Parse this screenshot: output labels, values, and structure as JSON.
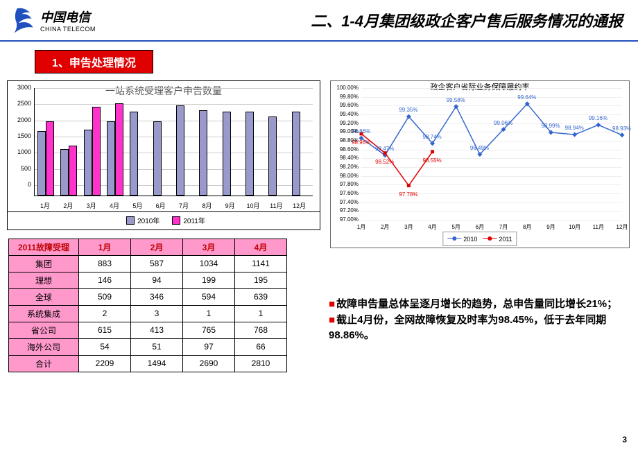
{
  "header": {
    "logo_cn": "中国电信",
    "logo_en": "CHINA TELECOM",
    "title": "二、1-4月集团级政企客户售后服务情况的通报"
  },
  "section_tab": "1、申告处理情况",
  "bar_chart": {
    "title": "一站系统受理客户申告数量",
    "type": "bar",
    "categories": [
      "1月",
      "2月",
      "3月",
      "4月",
      "5月",
      "6月",
      "7月",
      "8月",
      "9月",
      "10月",
      "11月",
      "12月"
    ],
    "series": [
      {
        "name": "2010年",
        "color": "#9999cc",
        "values": [
          1950,
          1400,
          2000,
          2250,
          2550,
          2250,
          2750,
          2600,
          2550,
          2550,
          2400,
          2550
        ]
      },
      {
        "name": "2011年",
        "color": "#ff33cc",
        "values": [
          2250,
          1500,
          2700,
          2800,
          null,
          null,
          null,
          null,
          null,
          null,
          null,
          null
        ]
      }
    ],
    "ylim": [
      0,
      3000
    ],
    "ytick_step": 500,
    "background_color": "#ffffff",
    "grid_color": "#e0e0e0"
  },
  "line_chart": {
    "title": "政企客户省际业务保障履约率",
    "type": "line",
    "categories": [
      "1月",
      "2月",
      "3月",
      "4月",
      "5月",
      "6月",
      "7月",
      "8月",
      "9月",
      "10月",
      "11月",
      "12月"
    ],
    "series": [
      {
        "name": "2010",
        "color": "#3366cc",
        "values": [
          98.86,
          98.47,
          99.35,
          98.74,
          99.58,
          98.49,
          99.06,
          99.64,
          98.99,
          98.94,
          99.16,
          98.93
        ],
        "labels": [
          "98.86%",
          "98.47%",
          "99.35%",
          "98.74%",
          "99.58%",
          "98.49%",
          "99.06%",
          "99.64%",
          "98.99%",
          "98.94%",
          "99.16%",
          "98.93%"
        ]
      },
      {
        "name": "2011",
        "color": "#e00000",
        "values": [
          98.96,
          98.52,
          97.78,
          98.55,
          null,
          null,
          null,
          null,
          null,
          null,
          null,
          null
        ],
        "labels": [
          "98.96%",
          "98.52%",
          "97.78%",
          "98.55%",
          null,
          null,
          null,
          null,
          null,
          null,
          null,
          null
        ]
      }
    ],
    "ylim": [
      97.0,
      100.0
    ],
    "ytick_step": 0.2,
    "yticks": [
      "100.00%",
      "99.80%",
      "99.60%",
      "99.40%",
      "99.20%",
      "99.00%",
      "98.80%",
      "98.60%",
      "98.40%",
      "98.20%",
      "98.00%",
      "97.80%",
      "97.60%",
      "97.40%",
      "97.20%",
      "97.00%"
    ]
  },
  "table": {
    "header_row": [
      "2011故障受理",
      "1月",
      "2月",
      "3月",
      "4月"
    ],
    "rows": [
      [
        "集团",
        "883",
        "587",
        "1034",
        "1141"
      ],
      [
        "理想",
        "146",
        "94",
        "199",
        "195"
      ],
      [
        "全球",
        "509",
        "346",
        "594",
        "639"
      ],
      [
        "系统集成",
        "2",
        "3",
        "1",
        "1"
      ],
      [
        "省公司",
        "615",
        "413",
        "765",
        "768"
      ],
      [
        "海外公司",
        "54",
        "51",
        "97",
        "66"
      ],
      [
        "合计",
        "2209",
        "1494",
        "2690",
        "2810"
      ]
    ],
    "header_color": "#c00000",
    "row_bg": "#ff99cc"
  },
  "bullets": [
    "故障申告量总体呈逐月增长的趋势，总申告量同比增长21%；",
    "截止4月份，全网故障恢复及时率为98.45%，低于去年同期98.86%。"
  ],
  "page_num": "3"
}
